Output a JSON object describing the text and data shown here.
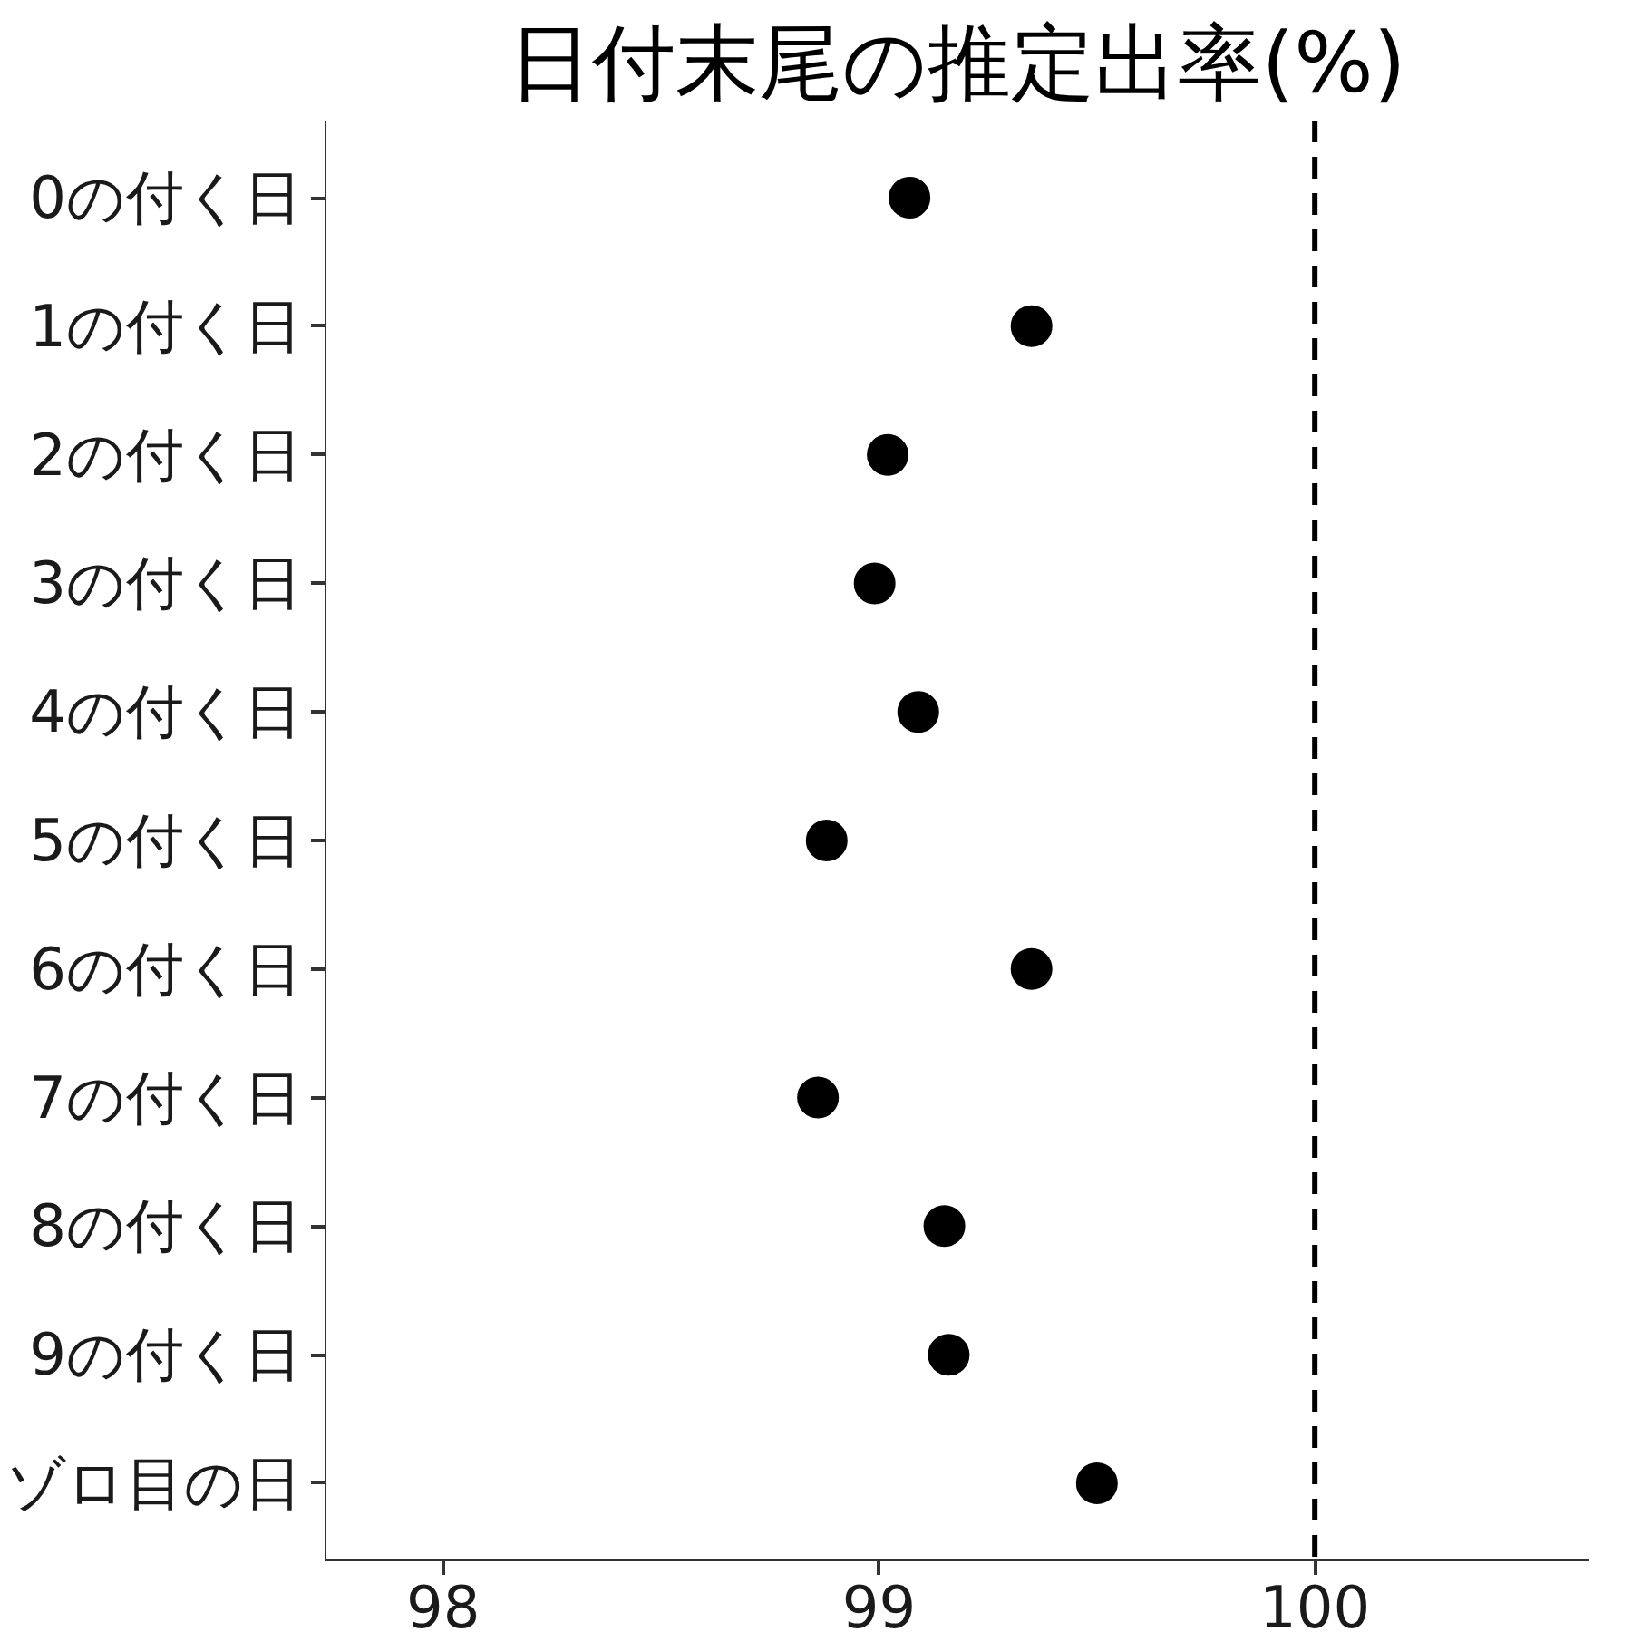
{
  "chart_data": {
    "type": "scatter",
    "title": "日付末尾の推定出率(%)",
    "orientation": "horizontal",
    "categories": [
      "0の付く日",
      "1の付く日",
      "2の付く日",
      "3の付く日",
      "4の付く日",
      "5の付く日",
      "6の付く日",
      "7の付く日",
      "8の付く日",
      "9の付く日",
      "ゾロ目の日"
    ],
    "values": [
      99.07,
      99.35,
      99.02,
      98.99,
      99.09,
      98.88,
      99.35,
      98.86,
      99.15,
      99.16,
      99.5
    ],
    "color": "#000000",
    "marker": "circle",
    "xlim": [
      97.73,
      100.63
    ],
    "xticks": [
      98,
      99,
      100
    ],
    "ref_lines": [
      {
        "axis": "x",
        "value": 100,
        "line_style": "dashed",
        "color": "#000000"
      }
    ],
    "grid": false
  }
}
